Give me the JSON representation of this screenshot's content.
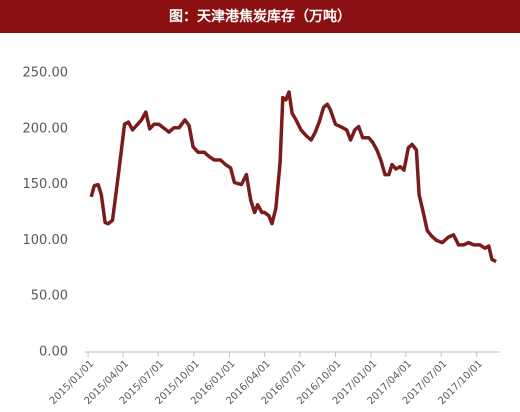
{
  "chart_data": {
    "type": "line",
    "title": "图：天津港焦炭库存（万吨）",
    "color": "#7b1c1c",
    "x": [
      "2015/01/09",
      "2015/01/17",
      "2015/01/27",
      "2015/02/04",
      "2015/02/14",
      "2015/02/22",
      "2015/03/05",
      "2015/03/15",
      "2015/03/25",
      "2015/04/05",
      "2015/04/15",
      "2015/04/26",
      "2015/05/06",
      "2015/05/19",
      "2015/05/30",
      "2015/06/09",
      "2015/06/20",
      "2015/07/03",
      "2015/07/18",
      "2015/07/29",
      "2015/08/11",
      "2015/08/24",
      "2015/09/08",
      "2015/09/19",
      "2015/09/29",
      "2015/10/12",
      "2015/10/28",
      "2015/11/10",
      "2015/11/23",
      "2015/12/09",
      "2015/12/22",
      "2016/01/04",
      "2016/01/14",
      "2016/02/01",
      "2016/02/14",
      "2016/02/25",
      "2016/03/06",
      "2016/03/14",
      "2016/03/25",
      "2016/04/01",
      "2016/04/12",
      "2016/04/20",
      "2016/04/30",
      "2016/05/11",
      "2016/05/18",
      "2016/05/26",
      "2016/06/03",
      "2016/06/11",
      "2016/06/21",
      "2016/07/04",
      "2016/07/17",
      "2016/07/30",
      "2016/08/10",
      "2016/08/20",
      "2016/08/31",
      "2016/09/10",
      "2016/09/18",
      "2016/10/01",
      "2016/10/14",
      "2016/10/30",
      "2016/11/09",
      "2016/11/20",
      "2016/11/30",
      "2016/12/10",
      "2016/12/26",
      "2017/01/05",
      "2017/01/16",
      "2017/01/26",
      "2017/02/06",
      "2017/02/16",
      "2017/02/24",
      "2017/03/06",
      "2017/03/17",
      "2017/03/27",
      "2017/04/07",
      "2017/04/17",
      "2017/04/28",
      "2017/05/05",
      "2017/05/16",
      "2017/05/26",
      "2017/06/06",
      "2017/06/19",
      "2017/07/04",
      "2017/07/20",
      "2017/08/02",
      "2017/08/15",
      "2017/08/28",
      "2017/09/10",
      "2017/09/23",
      "2017/10/09",
      "2017/10/22",
      "2017/11/01",
      "2017/11/09",
      "2017/11/20"
    ],
    "values": [
      139,
      149,
      150,
      141,
      116,
      115,
      118,
      145,
      172,
      204,
      206,
      199,
      203,
      208,
      215,
      200,
      204,
      204,
      200,
      197,
      201,
      201,
      208,
      203,
      184,
      179,
      179,
      175,
      172,
      172,
      168,
      165,
      152,
      150,
      159,
      136,
      125,
      132,
      125,
      125,
      122,
      115,
      129,
      170,
      228,
      226,
      233,
      214,
      208,
      199,
      194,
      190,
      197,
      206,
      219,
      222,
      217,
      204,
      202,
      199,
      190,
      199,
      202,
      192,
      192,
      188,
      181,
      172,
      159,
      159,
      168,
      164,
      166,
      163,
      183,
      186,
      181,
      141,
      125,
      109,
      104,
      100,
      98,
      103,
      105,
      96,
      96,
      98,
      96,
      96,
      93,
      95,
      83,
      81
    ],
    "xlim": [
      "2014/12/24",
      "2017/11/30"
    ],
    "xticks": [
      "2015/01/01",
      "2015/04/01",
      "2015/07/01",
      "2015/10/01",
      "2016/01/01",
      "2016/04/01",
      "2016/07/01",
      "2016/10/01",
      "2017/01/01",
      "2017/04/01",
      "2017/07/01",
      "2017/10/01"
    ],
    "ylim": [
      0,
      250
    ],
    "yticks": [
      {
        "value": 0,
        "label": "0.00"
      },
      {
        "value": 50,
        "label": "50.00"
      },
      {
        "value": 100,
        "label": "100.00"
      },
      {
        "value": 150,
        "label": "150.00"
      },
      {
        "value": 200,
        "label": "200.00"
      },
      {
        "value": 250,
        "label": "250.00"
      }
    ]
  }
}
